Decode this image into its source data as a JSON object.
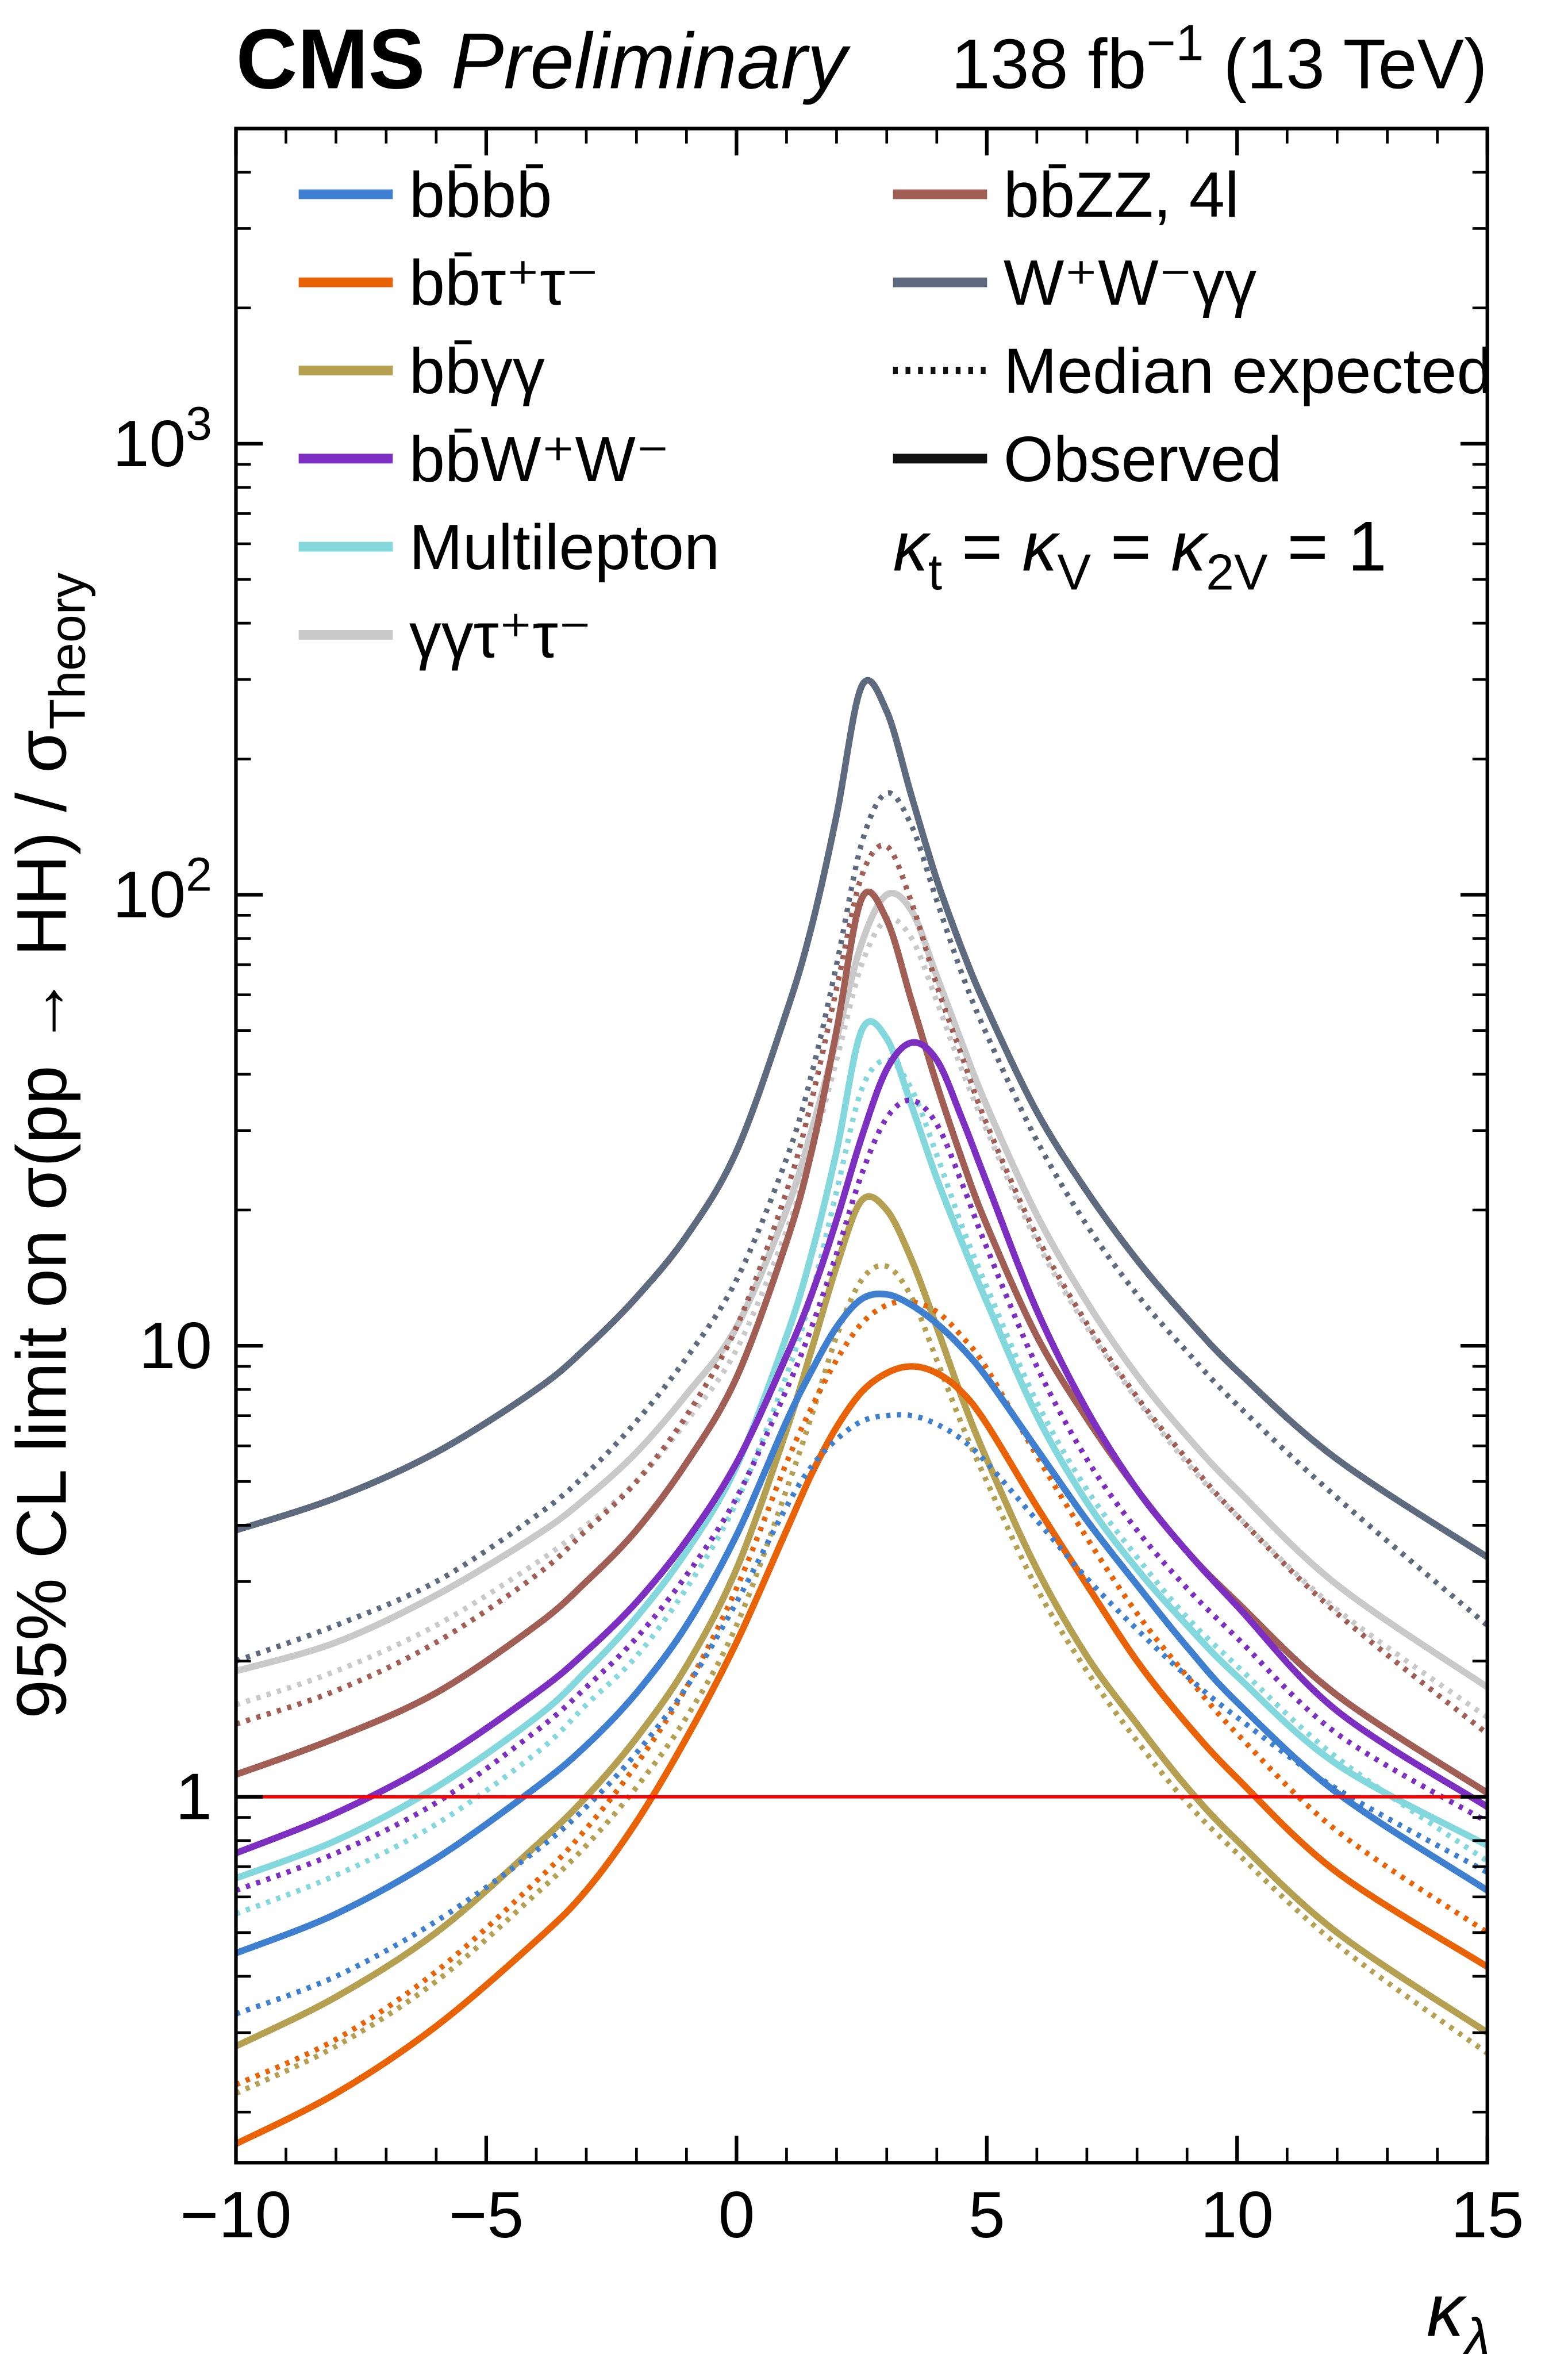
{
  "header": {
    "experiment": "CMS",
    "label": "Preliminary",
    "lumi_rich": [
      {
        "t": "138 fb"
      },
      {
        "t": "−1",
        "s": "sup"
      },
      {
        "t": " (13 TeV)"
      }
    ]
  },
  "axes": {
    "x": {
      "title": "κ_λ",
      "title_rich": [
        {
          "t": "κ",
          "i": true
        },
        {
          "t": "λ",
          "s": "sub",
          "i": true
        }
      ],
      "min": -10,
      "max": 15,
      "major_ticks": [
        -10,
        -5,
        0,
        5,
        10,
        15
      ],
      "tick_labels": [
        "−10",
        "−5",
        "0",
        "5",
        "10",
        "15"
      ]
    },
    "y": {
      "title": "95% CL limit on σ(pp → HH) / σ_Theory",
      "title_rich": [
        {
          "t": "95% CL limit on σ(pp → HH) / σ"
        },
        {
          "t": "Theory",
          "s": "sub"
        }
      ],
      "scale": "log",
      "min": 0.155,
      "max": 5000,
      "tick_values": [
        1,
        10,
        100,
        1000
      ],
      "tick_labels_rich": [
        [
          {
            "t": "1"
          }
        ],
        [
          {
            "t": "10"
          }
        ],
        [
          {
            "t": "10"
          },
          {
            "t": "2",
            "s": "sup"
          }
        ],
        [
          {
            "t": "10"
          },
          {
            "t": "3",
            "s": "sup"
          }
        ]
      ]
    }
  },
  "legend": {
    "col1": [
      {
        "label": "bb̄bb̄",
        "color": "#3e7fd0",
        "style": "solid"
      },
      {
        "label": "bb̄τ⁺τ⁻",
        "color": "#e96206",
        "style": "solid"
      },
      {
        "label": "bb̄γγ",
        "color": "#b5a052",
        "style": "solid"
      },
      {
        "label": "bb̄W⁺W⁻",
        "color": "#7d2fc1",
        "style": "solid"
      },
      {
        "label": "Multilepton",
        "color": "#82d8dd",
        "style": "solid"
      },
      {
        "label": "γγτ⁺τ⁻",
        "color": "#c9c9c9",
        "style": "solid"
      }
    ],
    "col2": [
      {
        "label": "bb̄ZZ, 4l",
        "color": "#a15e55",
        "style": "solid"
      },
      {
        "label": "W⁺W⁻γγ",
        "color": "#5e6b7e",
        "style": "solid"
      },
      {
        "label": "Median expected",
        "color": "#111111",
        "style": "dashed"
      },
      {
        "label": "Observed",
        "color": "#111111",
        "style": "solid"
      }
    ],
    "kappa_rich": [
      {
        "t": "κ",
        "i": true
      },
      {
        "t": "t",
        "s": "sub"
      },
      {
        "t": " = "
      },
      {
        "t": "κ",
        "i": true
      },
      {
        "t": "V",
        "s": "sub"
      },
      {
        "t": " = "
      },
      {
        "t": "κ",
        "i": true
      },
      {
        "t": "2V",
        "s": "sub"
      },
      {
        "t": " = 1"
      }
    ]
  },
  "chart_data": {
    "type": "line",
    "title": "",
    "xlabel": "κ_λ",
    "ylabel": "95% CL limit on σ(pp → HH) / σ_Theory",
    "x_range": [
      -10,
      15
    ],
    "y_range": [
      0.155,
      5000
    ],
    "y_scale": "log",
    "grid": false,
    "legend_position": "top-inside",
    "reference_line": {
      "y": 1,
      "color": "#ff0000",
      "label": ""
    },
    "x": [
      -10,
      -8,
      -6,
      -4,
      -3,
      -2,
      -1,
      0,
      1,
      1.5,
      2,
      2.5,
      3,
      3.5,
      4,
      4.5,
      5,
      6,
      7,
      8,
      9,
      10,
      12,
      15
    ],
    "series": [
      {
        "name": "gammagammatautau-expected",
        "channel": "γγτ⁺τ⁻",
        "style": "dashed",
        "color": "#c9c9c9",
        "y": [
          1.6,
          1.9,
          2.4,
          3.3,
          4.0,
          5.0,
          6.8,
          9.8,
          18,
          27,
          43,
          70,
          88,
          80,
          58,
          41,
          30,
          17,
          11,
          7.6,
          5.5,
          4.2,
          2.6,
          1.5
        ]
      },
      {
        "name": "gammagammatautau-observed",
        "channel": "γγτ⁺τ⁻",
        "style": "solid",
        "color": "#c9c9c9",
        "y": [
          1.9,
          2.2,
          2.8,
          3.8,
          4.6,
          5.8,
          7.8,
          11,
          20,
          30,
          48,
          78,
          100,
          92,
          66,
          47,
          34,
          19.5,
          12.5,
          8.6,
          6.3,
          4.8,
          2.95,
          1.75
        ]
      },
      {
        "name": "bbgammagamma-expected",
        "channel": "bb̄γγ",
        "style": "dashed",
        "color": "#b5a052",
        "y": [
          0.22,
          0.28,
          0.39,
          0.61,
          0.78,
          1.05,
          1.5,
          2.4,
          4.8,
          7.0,
          10.5,
          14,
          15,
          12.8,
          9.3,
          6.7,
          5.0,
          2.9,
          1.9,
          1.33,
          0.97,
          0.75,
          0.47,
          0.27
        ]
      },
      {
        "name": "bbgammagamma-observed",
        "channel": "bb̄γγ",
        "style": "solid",
        "color": "#b5a052",
        "y": [
          0.28,
          0.36,
          0.5,
          0.78,
          1.0,
          1.35,
          1.95,
          3.2,
          6.5,
          9.8,
          15,
          21,
          20,
          15.5,
          11,
          7.7,
          5.6,
          3.2,
          2.05,
          1.45,
          1.05,
          0.8,
          0.5,
          0.3
        ]
      },
      {
        "name": "bbtautau-expected",
        "channel": "bb̄τ⁺τ⁻",
        "style": "dashed",
        "color": "#e96206",
        "y": [
          0.23,
          0.29,
          0.41,
          0.65,
          0.85,
          1.18,
          1.75,
          2.9,
          5.5,
          7.3,
          9.3,
          11.2,
          12.3,
          12.5,
          11.9,
          10.5,
          8.9,
          5.7,
          3.75,
          2.55,
          1.85,
          1.38,
          0.84,
          0.5
        ]
      },
      {
        "name": "bbtautau-observed",
        "channel": "bb̄τ⁺τ⁻",
        "style": "solid",
        "color": "#e96206",
        "y": [
          0.17,
          0.22,
          0.31,
          0.48,
          0.62,
          0.88,
          1.35,
          2.2,
          3.9,
          5.2,
          6.6,
          7.9,
          8.7,
          9.0,
          8.7,
          7.9,
          6.7,
          4.4,
          2.95,
          2.0,
          1.45,
          1.1,
          0.68,
          0.42
        ]
      },
      {
        "name": "bbbb-expected",
        "channel": "bb̄bb̄",
        "style": "dashed",
        "color": "#3e7fd0",
        "y": [
          0.33,
          0.4,
          0.53,
          0.76,
          0.95,
          1.25,
          1.75,
          2.7,
          4.4,
          5.4,
          6.2,
          6.8,
          7.0,
          7.0,
          6.7,
          6.2,
          5.5,
          4.1,
          3.05,
          2.35,
          1.85,
          1.5,
          1.04,
          0.68
        ]
      },
      {
        "name": "bbbb-observed",
        "channel": "bb̄bb̄",
        "style": "solid",
        "color": "#3e7fd0",
        "y": [
          0.45,
          0.55,
          0.73,
          1.05,
          1.3,
          1.7,
          2.4,
          3.8,
          6.8,
          8.8,
          11,
          12.7,
          13,
          12.3,
          11.2,
          9.9,
          8.5,
          5.9,
          4.1,
          2.95,
          2.15,
          1.62,
          1.02,
          0.62
        ]
      },
      {
        "name": "multilepton-expected",
        "channel": "Multilepton",
        "style": "dashed",
        "color": "#82d8dd",
        "y": [
          0.55,
          0.67,
          0.87,
          1.25,
          1.6,
          2.05,
          2.9,
          4.5,
          8.6,
          13,
          22,
          37,
          43,
          37,
          26.5,
          18.5,
          13.5,
          7.5,
          4.8,
          3.4,
          2.5,
          1.95,
          1.22,
          0.72
        ]
      },
      {
        "name": "multilepton-observed",
        "channel": "Multilepton",
        "style": "solid",
        "color": "#82d8dd",
        "y": [
          0.66,
          0.8,
          1.05,
          1.5,
          1.9,
          2.5,
          3.5,
          5.4,
          10.5,
          16,
          27,
          50,
          48,
          34,
          23.5,
          17,
          12.5,
          7.0,
          4.5,
          3.2,
          2.4,
          1.85,
          1.18,
          0.78
        ]
      },
      {
        "name": "bbZZ-expected",
        "channel": "bb̄ZZ, 4l",
        "style": "dashed",
        "color": "#a15e55",
        "y": [
          1.45,
          1.72,
          2.2,
          3.1,
          3.9,
          5.0,
          7.0,
          11,
          22,
          35,
          62,
          110,
          128,
          96,
          63,
          44,
          31,
          17.5,
          11.2,
          7.7,
          5.6,
          4.2,
          2.55,
          1.38
        ]
      },
      {
        "name": "bbZZ-observed",
        "channel": "bb̄ZZ, 4l",
        "style": "solid",
        "color": "#a15e55",
        "y": [
          1.12,
          1.35,
          1.7,
          2.4,
          3.0,
          3.9,
          5.5,
          8.5,
          17,
          27,
          50,
          98,
          88,
          58,
          38,
          26,
          18.5,
          10.5,
          6.9,
          4.8,
          3.5,
          2.7,
          1.68,
          1.02
        ]
      },
      {
        "name": "bbWW-expected",
        "channel": "bb̄W⁺W⁻",
        "style": "dashed",
        "color": "#7d2fc1",
        "y": [
          0.62,
          0.75,
          0.97,
          1.4,
          1.75,
          2.25,
          3.1,
          4.6,
          8.0,
          11,
          16,
          24,
          32,
          35,
          31,
          23,
          16.5,
          9.0,
          5.6,
          3.9,
          2.9,
          2.25,
          1.38,
          0.88
        ]
      },
      {
        "name": "bbWW-observed",
        "channel": "bb̄W⁺W⁻",
        "style": "solid",
        "color": "#7d2fc1",
        "y": [
          0.75,
          0.92,
          1.2,
          1.7,
          2.1,
          2.7,
          3.7,
          5.5,
          9.5,
          13,
          19,
          29,
          41,
          47,
          43,
          32,
          23,
          12,
          7.2,
          4.8,
          3.5,
          2.65,
          1.55,
          0.95
        ]
      },
      {
        "name": "WWgammagamma-expected",
        "channel": "W⁺W⁻γγ",
        "style": "dashed",
        "color": "#5e6b7e",
        "y": [
          2.0,
          2.4,
          3.0,
          4.2,
          5.2,
          6.8,
          9.4,
          14,
          26,
          40,
          70,
          130,
          168,
          142,
          97,
          67,
          49,
          28.5,
          18.5,
          13,
          9.7,
          7.4,
          4.6,
          2.4
        ]
      },
      {
        "name": "WWgammagamma-observed",
        "channel": "W⁺W⁻γγ",
        "style": "solid",
        "color": "#5e6b7e",
        "y": [
          3.9,
          4.6,
          5.8,
          8.0,
          9.9,
          12.8,
          17.5,
          27,
          55,
          85,
          150,
          290,
          255,
          165,
          108,
          76,
          56,
          33,
          22,
          15.5,
          11.5,
          8.8,
          5.6,
          3.4
        ]
      }
    ]
  }
}
